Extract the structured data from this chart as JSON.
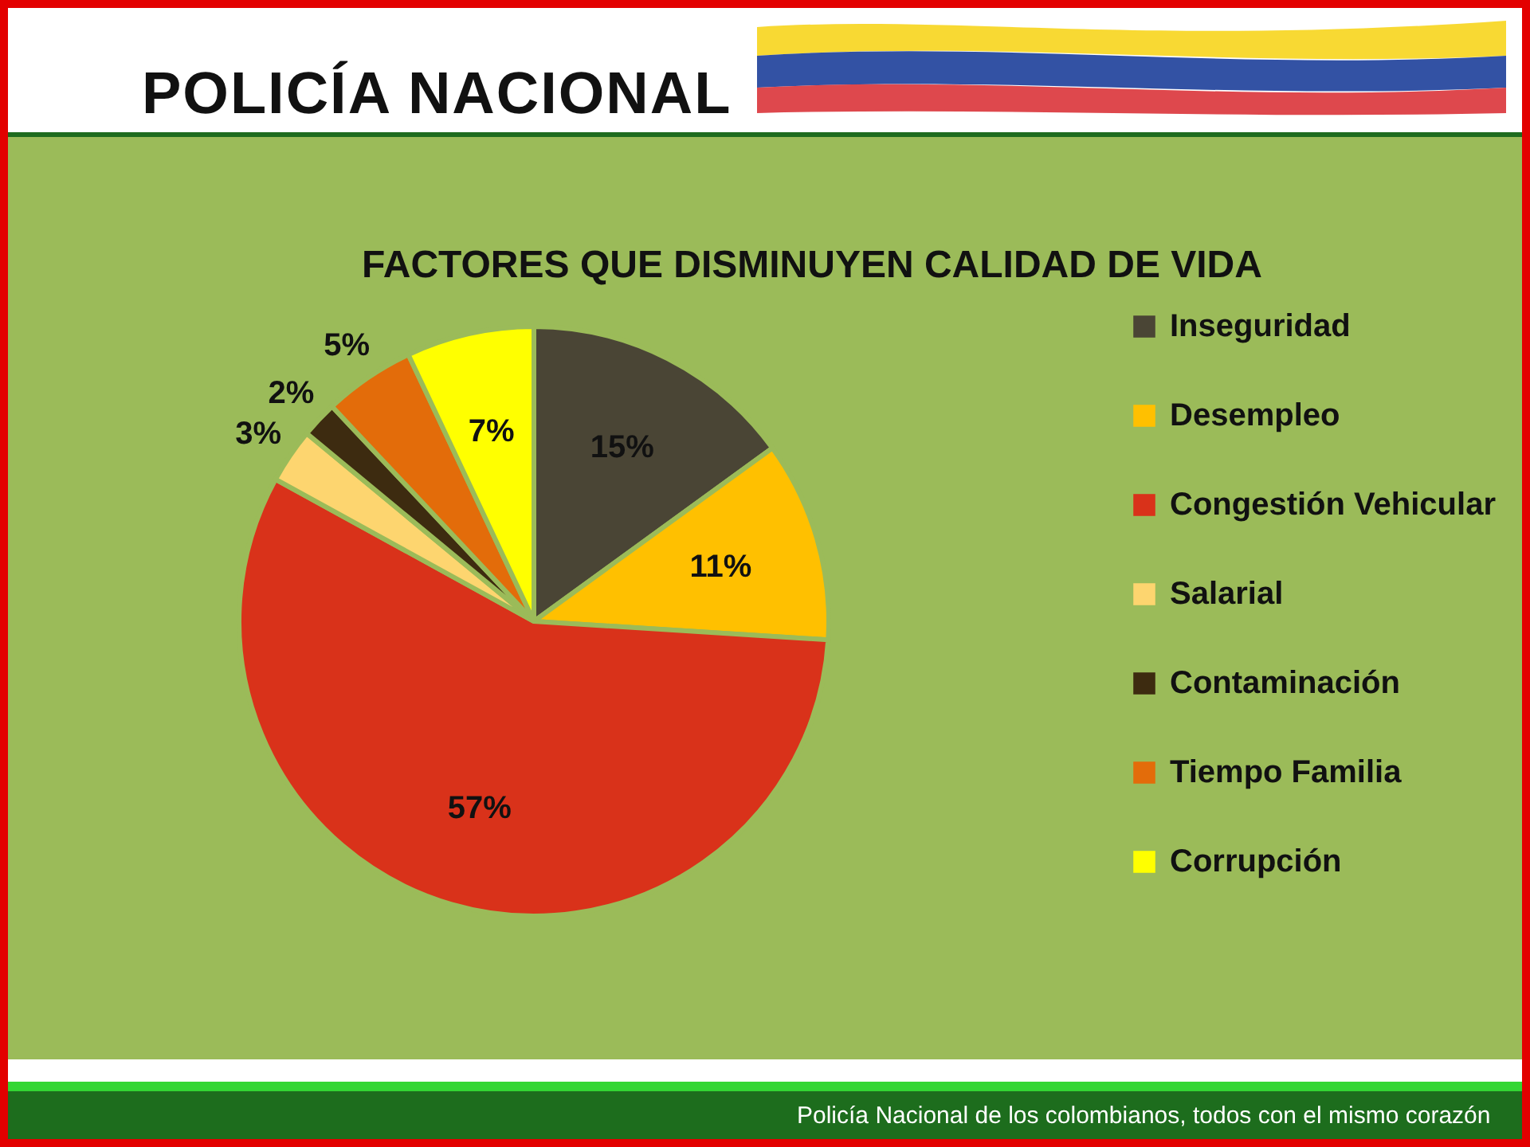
{
  "chart_data": {
    "type": "pie",
    "title": "FACTORES QUE DISMINUYEN CALIDAD DE VIDA",
    "categories": [
      "Inseguridad",
      "Desempleo",
      "Congestión Vehicular",
      "Salarial",
      "Contaminación",
      "Tiempo Familia",
      "Corrupción"
    ],
    "values": [
      15,
      11,
      57,
      3,
      2,
      5,
      7
    ],
    "value_labels": [
      "15%",
      "11%",
      "57%",
      "3%",
      "2%",
      "5%",
      "7%"
    ],
    "colors": [
      "#4a4535",
      "#ffc000",
      "#d9321a",
      "#fdd56f",
      "#3d2b10",
      "#e36c0a",
      "#ffff00"
    ],
    "legend": "right",
    "annotations": [
      "POLICÍA NACIONAL",
      "Policía Nacional de los colombianos, todos con el mismo corazón"
    ]
  }
}
